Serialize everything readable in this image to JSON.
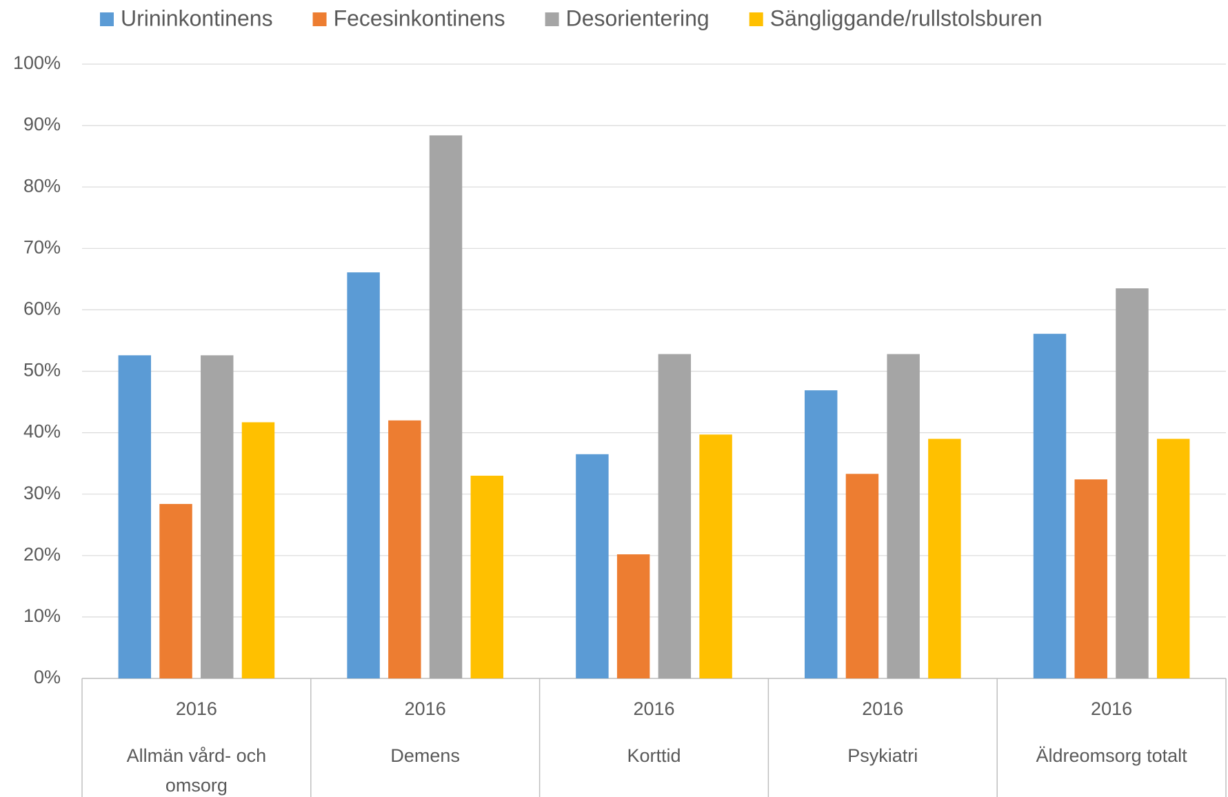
{
  "chart_data": {
    "type": "bar",
    "categories": [
      "Allmän vård- och omsorg",
      "Demens",
      "Korttid",
      "Psykiatri",
      "Äldreomsorg totalt"
    ],
    "year_labels": [
      "2016",
      "2016",
      "2016",
      "2016",
      "2016"
    ],
    "series": [
      {
        "name": "Urininkontinens",
        "color": "#5b9bd5",
        "values": [
          52.6,
          66.1,
          36.5,
          46.9,
          56.1
        ]
      },
      {
        "name": "Fecesinkontinens",
        "color": "#ed7d31",
        "values": [
          28.4,
          42.0,
          20.2,
          33.3,
          32.4
        ]
      },
      {
        "name": "Desorientering",
        "color": "#a5a5a5",
        "values": [
          52.6,
          88.4,
          52.8,
          52.8,
          63.5
        ]
      },
      {
        "name": "Sängliggande/rullstolsburen",
        "color": "#ffc000",
        "values": [
          41.7,
          33.0,
          39.7,
          39.0,
          39.0
        ]
      }
    ],
    "ylim": [
      0,
      100
    ],
    "yticks": [
      {
        "value": 0,
        "label": "0%"
      },
      {
        "value": 10,
        "label": "10%"
      },
      {
        "value": 20,
        "label": "20%"
      },
      {
        "value": 30,
        "label": "30%"
      },
      {
        "value": 40,
        "label": "40%"
      },
      {
        "value": 50,
        "label": "50%"
      },
      {
        "value": 60,
        "label": "60%"
      },
      {
        "value": 70,
        "label": "70%"
      },
      {
        "value": 80,
        "label": "80%"
      },
      {
        "value": 90,
        "label": "90%"
      },
      {
        "value": 100,
        "label": "100%"
      }
    ],
    "grid": true,
    "legend": "top"
  }
}
